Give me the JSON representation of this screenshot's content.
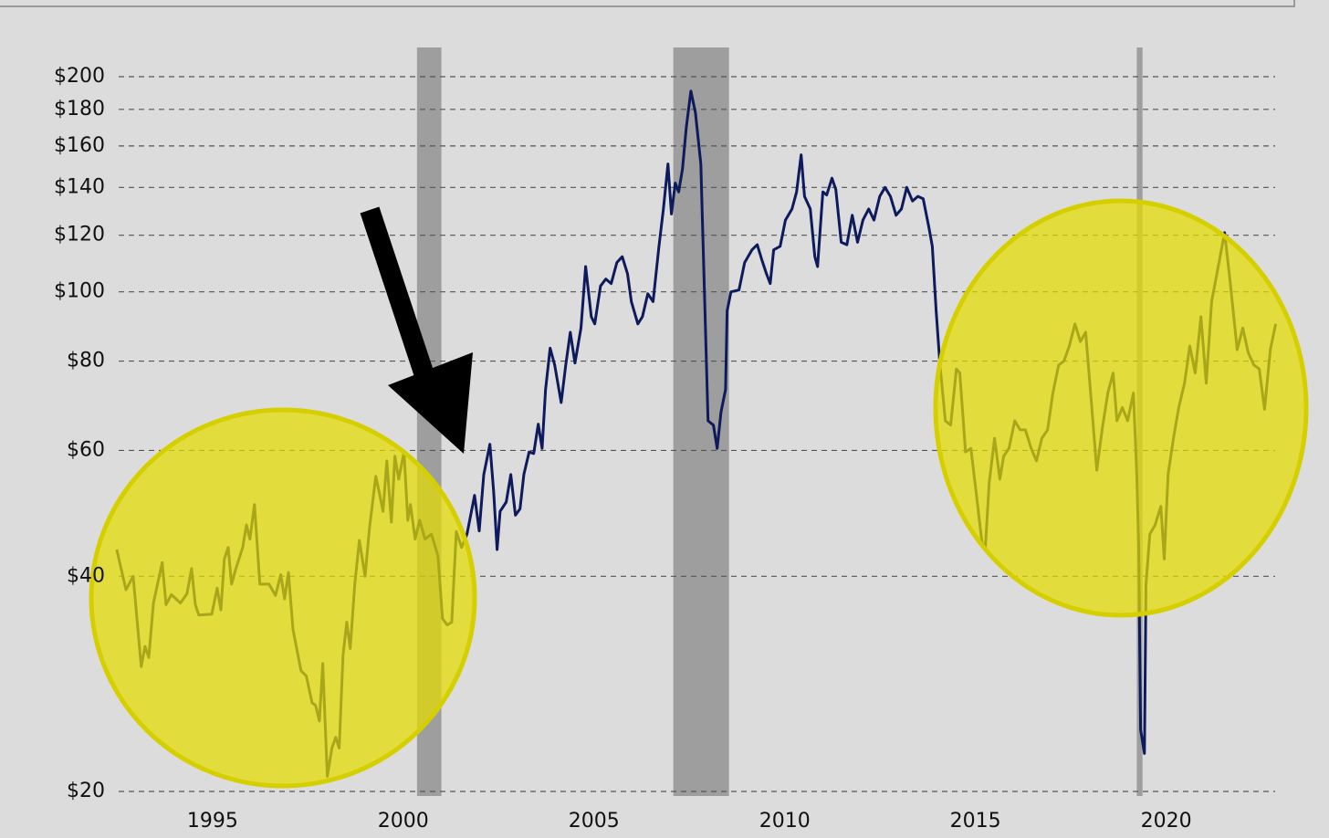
{
  "chart_data": {
    "type": "line",
    "log_scale": true,
    "grid": true,
    "xlim": [
      1992.3,
      2023.0
    ],
    "ylim": [
      20,
      200
    ],
    "xticks": [
      1995,
      2000,
      2005,
      2010,
      2015,
      2020
    ],
    "yticks": [
      {
        "value": 20,
        "label": "$20"
      },
      {
        "value": 40,
        "label": "$40"
      },
      {
        "value": 60,
        "label": "$60"
      },
      {
        "value": 80,
        "label": "$80"
      },
      {
        "value": 100,
        "label": "$100"
      },
      {
        "value": 120,
        "label": "$120"
      },
      {
        "value": 140,
        "label": "$140"
      },
      {
        "value": 160,
        "label": "$160"
      },
      {
        "value": 180,
        "label": "$180"
      },
      {
        "value": 200,
        "label": "$200"
      }
    ],
    "shaded_periods": [
      [
        2000.36,
        2001.0
      ],
      [
        2007.08,
        2008.54
      ],
      [
        2019.23,
        2019.38
      ]
    ],
    "shade_color": "#9e9e9e",
    "color": "#0d1a5c",
    "x": [
      1992.49,
      1992.73,
      1992.92,
      1993.13,
      1993.23,
      1993.33,
      1993.45,
      1993.68,
      1993.78,
      1993.92,
      1994.16,
      1994.33,
      1994.45,
      1994.55,
      1994.64,
      1994.98,
      1995.12,
      1995.22,
      1995.31,
      1995.41,
      1995.5,
      1995.6,
      1995.79,
      1995.89,
      1995.98,
      1996.1,
      1996.24,
      1996.48,
      1996.65,
      1996.79,
      1996.89,
      1996.99,
      1997.11,
      1997.32,
      1997.46,
      1997.61,
      1997.7,
      1997.8,
      1997.89,
      1998.01,
      1998.13,
      1998.23,
      1998.32,
      1998.42,
      1998.52,
      1998.61,
      1998.73,
      1998.85,
      1999.0,
      1999.11,
      1999.28,
      1999.38,
      1999.47,
      1999.57,
      1999.69,
      1999.78,
      1999.88,
      2000.02,
      2000.12,
      2000.19,
      2000.31,
      2000.43,
      2000.57,
      2000.74,
      2000.91,
      2001.03,
      2001.15,
      2001.27,
      2001.39,
      2001.53,
      2001.67,
      2001.87,
      2001.99,
      2002.11,
      2002.27,
      2002.37,
      2002.46,
      2002.54,
      2002.7,
      2002.82,
      2002.94,
      2003.06,
      2003.16,
      2003.3,
      2003.42,
      2003.54,
      2003.64,
      2003.73,
      2003.85,
      2003.97,
      2004.14,
      2004.26,
      2004.38,
      2004.5,
      2004.66,
      2004.78,
      2004.93,
      2005.02,
      2005.17,
      2005.31,
      2005.45,
      2005.6,
      2005.74,
      2005.88,
      2005.98,
      2006.15,
      2006.27,
      2006.41,
      2006.55,
      2006.7,
      2006.82,
      2006.94,
      2007.03,
      2007.13,
      2007.22,
      2007.32,
      2007.42,
      2007.54,
      2007.66,
      2007.8,
      2007.89,
      2007.99,
      2008.13,
      2008.23,
      2008.33,
      2008.45,
      2008.49,
      2008.59,
      2008.8,
      2008.95,
      2009.14,
      2009.28,
      2009.4,
      2009.52,
      2009.62,
      2009.71,
      2009.88,
      2010.02,
      2010.19,
      2010.31,
      2010.43,
      2010.52,
      2010.67,
      2010.79,
      2010.86,
      2011.0,
      2011.1,
      2011.24,
      2011.34,
      2011.48,
      2011.63,
      2011.77,
      2011.91,
      2012.05,
      2012.2,
      2012.34,
      2012.49,
      2012.63,
      2012.77,
      2012.92,
      2013.06,
      2013.2,
      2013.35,
      2013.49,
      2013.63,
      2013.78,
      2013.87,
      2013.97,
      2014.07,
      2014.21,
      2014.35,
      2014.5,
      2014.59,
      2014.74,
      2014.88,
      2015.02,
      2015.17,
      2015.26,
      2015.36,
      2015.5,
      2015.64,
      2015.74,
      2015.88,
      2016.03,
      2016.17,
      2016.31,
      2016.46,
      2016.6,
      2016.74,
      2016.89,
      2017.03,
      2017.18,
      2017.32,
      2017.46,
      2017.61,
      2017.75,
      2017.89,
      2018.04,
      2018.18,
      2018.32,
      2018.47,
      2018.61,
      2018.71,
      2018.85,
      2018.99,
      2019.14,
      2019.23,
      2019.28,
      2019.33,
      2019.43,
      2019.47,
      2019.57,
      2019.71,
      2019.86,
      2019.95,
      2020.05,
      2020.19,
      2020.33,
      2020.48,
      2020.62,
      2020.76,
      2020.91,
      2021.05,
      2021.19,
      2021.33,
      2021.53,
      2021.67,
      2021.86,
      2022.01,
      2022.15,
      2022.3,
      2022.44,
      2022.58,
      2022.73,
      2022.87
    ],
    "values": [
      43.6,
      38.3,
      40.0,
      29.9,
      31.9,
      30.8,
      36.7,
      41.8,
      36.5,
      37.7,
      36.7,
      37.8,
      41.0,
      36.5,
      35.3,
      35.4,
      38.5,
      35.9,
      42.3,
      43.9,
      39.0,
      40.8,
      43.9,
      47.2,
      45.1,
      50.4,
      39.0,
      39.0,
      37.6,
      40.2,
      37.2,
      40.5,
      33.7,
      29.5,
      29.0,
      26.6,
      26.4,
      25.1,
      30.2,
      21.0,
      23.0,
      23.8,
      23.0,
      31.0,
      34.5,
      31.7,
      39.0,
      44.9,
      40.0,
      46.5,
      55.2,
      52.1,
      49.3,
      58.0,
      47.6,
      58.9,
      54.7,
      59.7,
      47.9,
      50.4,
      45.1,
      47.9,
      45.1,
      45.8,
      42.7,
      34.9,
      34.2,
      34.5,
      46.2,
      43.9,
      45.8,
      51.9,
      46.3,
      55.5,
      61.2,
      52.6,
      43.6,
      49.3,
      50.8,
      55.5,
      48.7,
      49.7,
      55.5,
      59.7,
      59.4,
      65.3,
      60.4,
      73.0,
      83.4,
      79.0,
      70.0,
      79.0,
      87.8,
      79.5,
      89.0,
      108.5,
      92.3,
      90.2,
      101.9,
      104.2,
      102.7,
      109.9,
      112.0,
      106.0,
      96.9,
      90.2,
      92.3,
      99.4,
      96.9,
      115.4,
      130.6,
      151,
      128.5,
      142,
      138,
      148.5,
      170,
      191,
      178,
      151,
      102.7,
      66,
      65.1,
      60.4,
      67.9,
      73,
      94,
      100,
      100.6,
      109.9,
      114.5,
      116.4,
      110.9,
      106,
      102.7,
      114.5,
      115.8,
      126,
      130.6,
      138,
      155.5,
      136,
      130.6,
      112,
      108.5,
      138,
      136.6,
      144.2,
      139,
      117.3,
      116.4,
      128,
      117.3,
      126,
      130.6,
      126,
      136,
      140,
      136,
      128,
      130.6,
      140,
      134,
      136,
      135,
      123,
      115.8,
      94.1,
      79,
      66,
      65.1,
      78,
      77,
      59.7,
      60.4,
      52.3,
      44.6,
      43.9,
      54.0,
      62.4,
      54.7,
      58.9,
      60.4,
      66,
      64.1,
      64.1,
      60.4,
      58,
      62.4,
      64.1,
      72.2,
      79,
      80,
      84,
      90.2,
      85.2,
      87.8,
      70,
      56.3,
      64.1,
      72.2,
      77,
      66,
      68.9,
      66,
      72.2,
      55.5,
      43.9,
      24.4,
      22.6,
      39,
      45.8,
      47.2,
      50.1,
      42.3,
      55.5,
      62.4,
      68.9,
      74.5,
      84,
      77,
      92.3,
      74.5,
      96.9,
      106,
      121,
      104.2,
      83,
      89,
      82.2,
      79,
      78,
      68.5,
      83,
      90.2
    ]
  }
}
